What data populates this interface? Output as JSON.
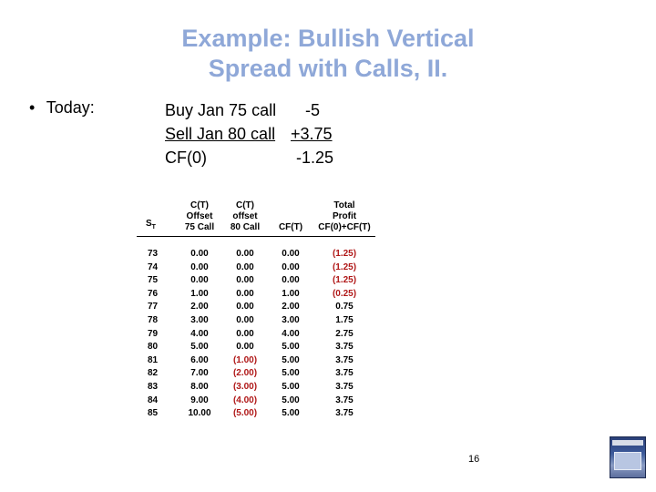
{
  "slide": {
    "title_line1": "Example: Bullish Vertical",
    "title_line2": "Spread with Calls, II.",
    "bullet": "•",
    "bullet_label": "Today:",
    "trade": [
      {
        "desc": "Buy Jan 75 call",
        "value": "-5"
      },
      {
        "desc": "Sell Jan 80 call",
        "value": "+3.75"
      },
      {
        "desc": "CF(0)",
        "value": "-1.25"
      }
    ],
    "page_number": "16"
  },
  "table": {
    "headers": {
      "st": "S",
      "st_sub": "T",
      "c1": [
        "C(T)",
        "Offset",
        "75 Call"
      ],
      "c2": [
        "C(T)",
        "offset",
        "80 Call"
      ],
      "c3": "CF(T)",
      "c4": [
        "Total",
        "Profit",
        "CF(0)+CF(T)"
      ]
    },
    "rows": [
      {
        "st": "73",
        "c1": "0.00",
        "c2": "0.00",
        "cft": "0.00",
        "total": "(1.25)"
      },
      {
        "st": "74",
        "c1": "0.00",
        "c2": "0.00",
        "cft": "0.00",
        "total": "(1.25)"
      },
      {
        "st": "75",
        "c1": "0.00",
        "c2": "0.00",
        "cft": "0.00",
        "total": "(1.25)"
      },
      {
        "st": "76",
        "c1": "1.00",
        "c2": "0.00",
        "cft": "1.00",
        "total": "(0.25)"
      },
      {
        "st": "77",
        "c1": "2.00",
        "c2": "0.00",
        "cft": "2.00",
        "total": "0.75"
      },
      {
        "st": "78",
        "c1": "3.00",
        "c2": "0.00",
        "cft": "3.00",
        "total": "1.75"
      },
      {
        "st": "79",
        "c1": "4.00",
        "c2": "0.00",
        "cft": "4.00",
        "total": "2.75"
      },
      {
        "st": "80",
        "c1": "5.00",
        "c2": "0.00",
        "cft": "5.00",
        "total": "3.75"
      },
      {
        "st": "81",
        "c1": "6.00",
        "c2": "(1.00)",
        "cft": "5.00",
        "total": "3.75"
      },
      {
        "st": "82",
        "c1": "7.00",
        "c2": "(2.00)",
        "cft": "5.00",
        "total": "3.75"
      },
      {
        "st": "83",
        "c1": "8.00",
        "c2": "(3.00)",
        "cft": "5.00",
        "total": "3.75"
      },
      {
        "st": "84",
        "c1": "9.00",
        "c2": "(4.00)",
        "cft": "5.00",
        "total": "3.75"
      },
      {
        "st": "85",
        "c1": "10.00",
        "c2": "(5.00)",
        "cft": "5.00",
        "total": "3.75"
      }
    ]
  },
  "colors": {
    "title": "#8fa8d8",
    "negative": "#b01818"
  },
  "icons": {
    "book_cover": "book-cover-image"
  }
}
